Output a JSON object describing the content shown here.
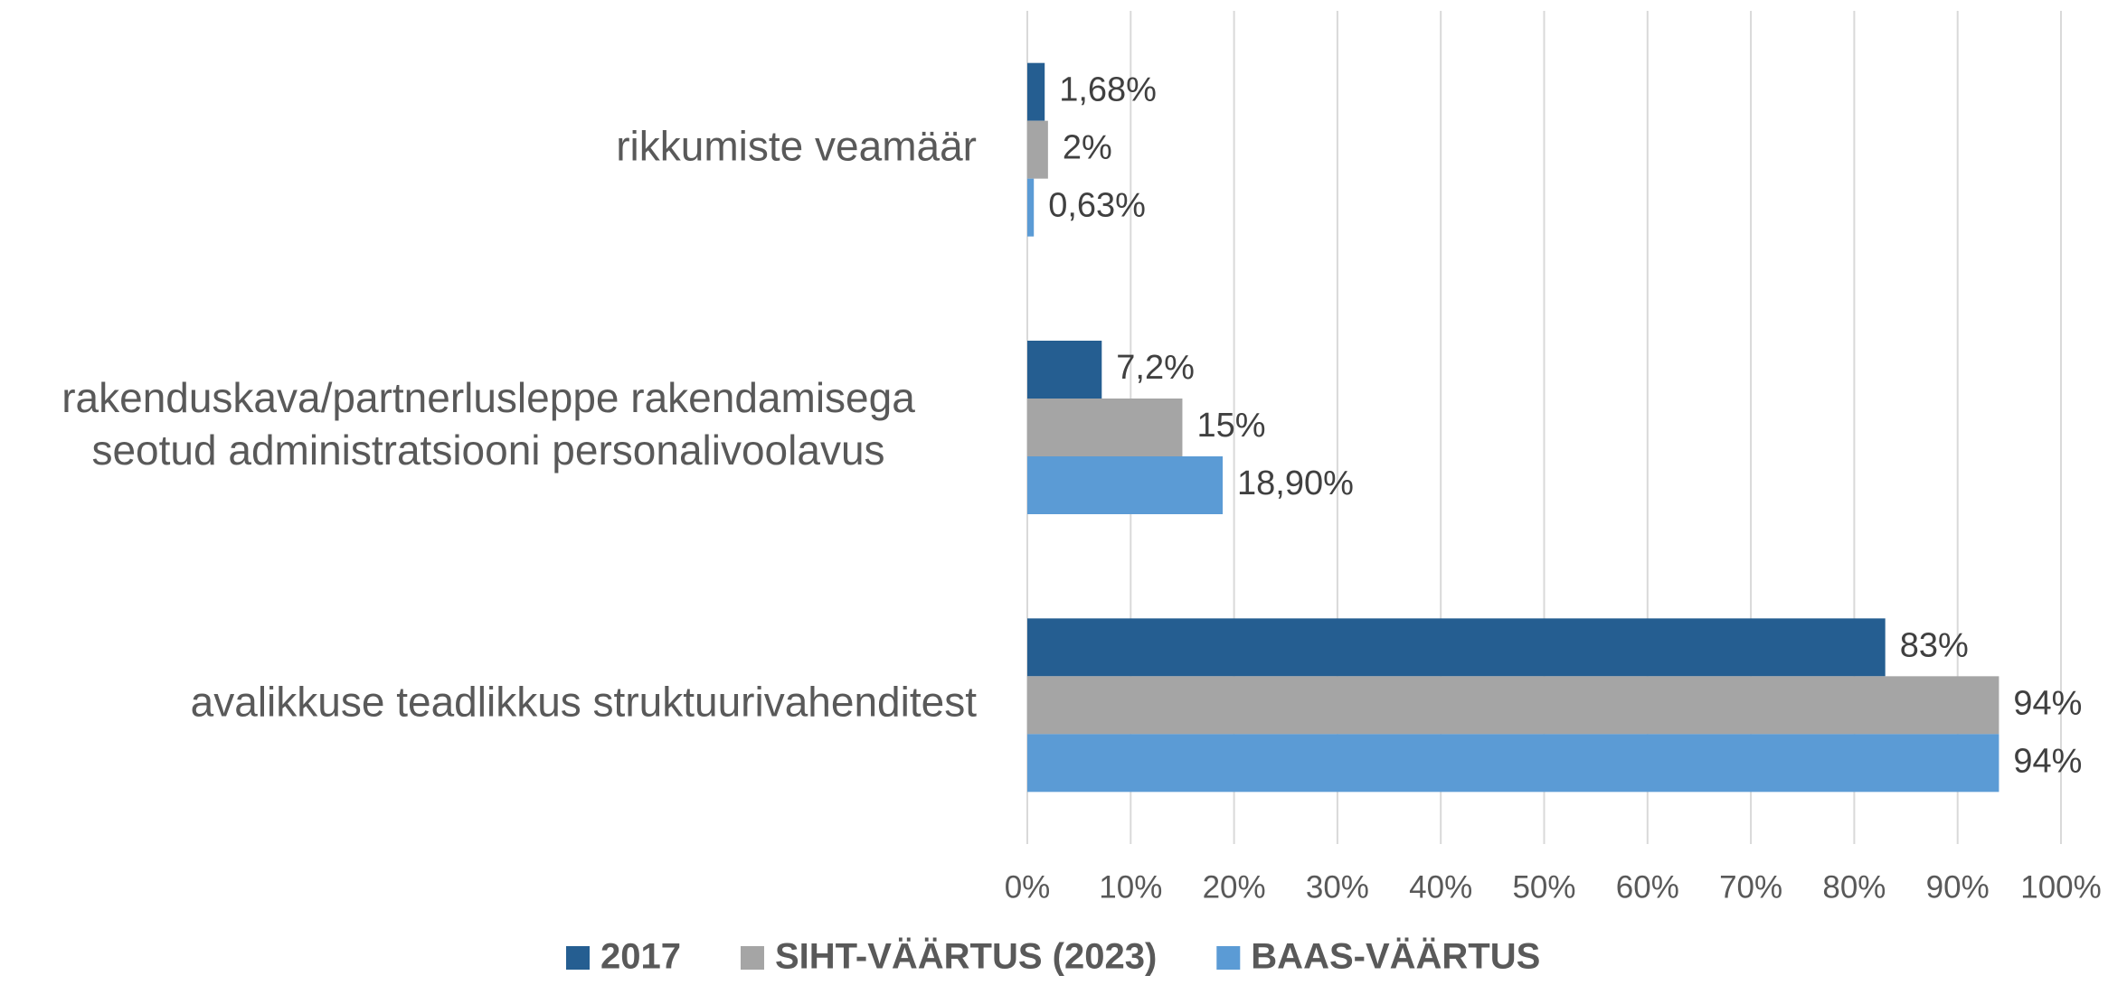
{
  "chart_data": {
    "type": "bar",
    "orientation": "horizontal",
    "categories": [
      "rikkumiste veamäär",
      "rakenduskava/partnerlusleppe rakendamisega seotud administratsiooni personalivoolavus",
      "avalikkuse teadlikkus struktuurivahenditest"
    ],
    "series": [
      {
        "name": "2017",
        "color": "#255e91",
        "values": [
          1.68,
          7.2,
          83
        ],
        "value_labels": [
          "1,68%",
          "7,2%",
          "83%"
        ]
      },
      {
        "name": "SIHT-VÄÄRTUS (2023)",
        "color": "#a5a5a5",
        "values": [
          2,
          15,
          94
        ],
        "value_labels": [
          "2%",
          "15%",
          "94%"
        ]
      },
      {
        "name": "BAAS-VÄÄRTUS",
        "color": "#5b9bd5",
        "values": [
          0.63,
          18.9,
          94
        ],
        "value_labels": [
          "0,63%",
          "18,90%",
          "94%"
        ]
      }
    ],
    "xlim": [
      0,
      100
    ],
    "xticks": [
      {
        "value": 0,
        "label": "0%"
      },
      {
        "value": 10,
        "label": "10%"
      },
      {
        "value": 20,
        "label": "20%"
      },
      {
        "value": 30,
        "label": "30%"
      },
      {
        "value": 40,
        "label": "40%"
      },
      {
        "value": 50,
        "label": "50%"
      },
      {
        "value": 60,
        "label": "60%"
      },
      {
        "value": 70,
        "label": "70%"
      },
      {
        "value": 80,
        "label": "80%"
      },
      {
        "value": 90,
        "label": "90%"
      },
      {
        "value": 100,
        "label": "100%"
      }
    ],
    "grid": true,
    "legend": "bottom"
  }
}
